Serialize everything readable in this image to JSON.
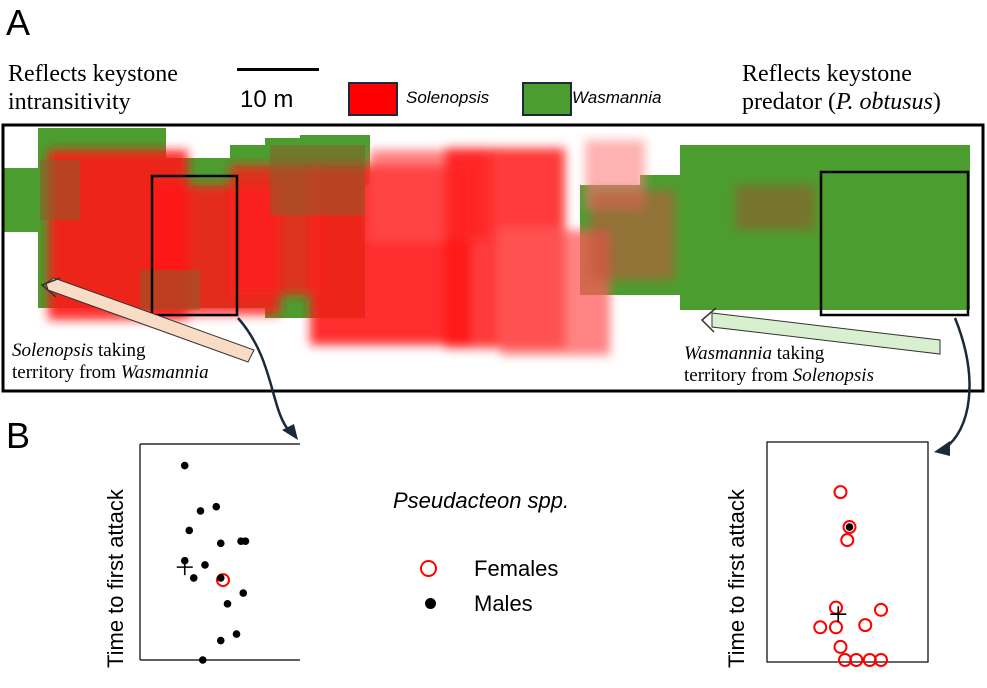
{
  "panel_a": {
    "label": "A",
    "left_title": [
      "Reflects keystone",
      "intransitivity"
    ],
    "right_title_line1": "Reflects keystone",
    "right_title_line2_prefix": "predator (",
    "right_title_line2_italic": "P. obtusus",
    "right_title_line2_suffix": ")",
    "scale_bar_label": "10 m",
    "legend": [
      {
        "label": "Solenopsis",
        "color": "#ff0000"
      },
      {
        "label": "Wasmannia",
        "color": "#4c9d2f"
      }
    ],
    "left_arrow_label": {
      "italic": "Solenopsis",
      "rest1": " taking",
      "line2_prefix": "territory from ",
      "line2_italic": "Wasmannia"
    },
    "right_arrow_label": {
      "italic": "Wasmannia",
      "rest1": " taking",
      "line2_prefix": "territory from ",
      "line2_italic": "Solenopsis"
    }
  },
  "panel_b": {
    "label": "B",
    "legend_title": "Pseudacteon spp.",
    "legend": [
      {
        "label": "Females",
        "marker": "open-circle",
        "color": "#ff0000"
      },
      {
        "label": "Males",
        "marker": "filled-circle",
        "color": "#000000"
      }
    ]
  },
  "chart_data": [
    {
      "type": "scatter",
      "ylabel": "Time to first attack",
      "mean_marker": "plus",
      "series": [
        {
          "name": "Males",
          "points": [
            [
              -0.45,
              90
            ],
            [
              -0.1,
              69
            ],
            [
              0.25,
              71
            ],
            [
              -0.35,
              60
            ],
            [
              0.35,
              54
            ],
            [
              0.8,
              55
            ],
            [
              0.9,
              55
            ],
            [
              -0.45,
              46
            ],
            [
              0.0,
              44
            ],
            [
              -0.25,
              38
            ],
            [
              0.35,
              38
            ],
            [
              0.85,
              31
            ],
            [
              0.5,
              26
            ],
            [
              0.35,
              9
            ],
            [
              0.7,
              12
            ],
            [
              -0.05,
              0
            ]
          ]
        },
        {
          "name": "Females",
          "points": [
            [
              0.4,
              37
            ]
          ]
        }
      ],
      "mean": [
        -0.45,
        43
      ]
    },
    {
      "type": "scatter",
      "ylabel": "Time to first attack",
      "mean_marker": "plus",
      "series": [
        {
          "name": "Females",
          "points": [
            [
              -0.1,
              77
            ],
            [
              0.1,
              61
            ],
            [
              0.05,
              55
            ],
            [
              -0.2,
              24
            ],
            [
              0.8,
              23
            ],
            [
              -0.55,
              15
            ],
            [
              -0.2,
              15
            ],
            [
              0.45,
              16
            ],
            [
              -0.1,
              6
            ],
            [
              0.0,
              0
            ],
            [
              0.25,
              0
            ],
            [
              0.55,
              0
            ],
            [
              0.8,
              0
            ]
          ]
        },
        {
          "name": "Males",
          "points": [
            [
              0.1,
              61
            ]
          ]
        }
      ],
      "mean": [
        -0.15,
        21
      ]
    }
  ]
}
